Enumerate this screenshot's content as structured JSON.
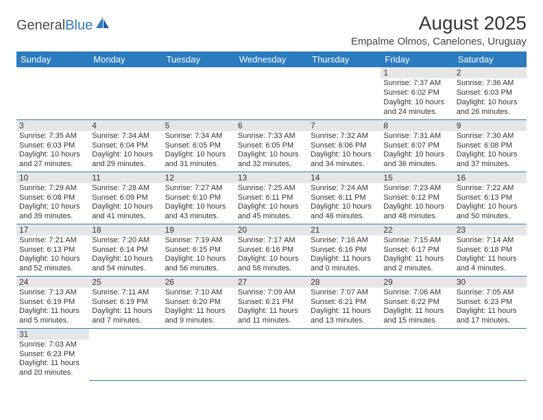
{
  "brand": {
    "part1": "General",
    "part2": "Blue"
  },
  "title": "August 2025",
  "subtitle": "Empalme Olmos, Canelones, Uruguay",
  "weekdays": [
    "Sunday",
    "Monday",
    "Tuesday",
    "Wednesday",
    "Thursday",
    "Friday",
    "Saturday"
  ],
  "colors": {
    "header_bg": "#2b7bbf",
    "header_fg": "#ffffff",
    "daynum_bg": "#e6e6e6",
    "rule": "#2b7bbf",
    "text": "#333333",
    "background": "#ffffff"
  },
  "font": {
    "family": "Arial",
    "title_size": 28,
    "subtitle_size": 15,
    "th_size": 13,
    "daynum_size": 12,
    "body_size": 11
  },
  "first_weekday_index": 5,
  "days": [
    {
      "n": 1,
      "sunrise": "7:37 AM",
      "sunset": "6:02 PM",
      "daylight": "10 hours and 24 minutes."
    },
    {
      "n": 2,
      "sunrise": "7:36 AM",
      "sunset": "6:03 PM",
      "daylight": "10 hours and 26 minutes."
    },
    {
      "n": 3,
      "sunrise": "7:35 AM",
      "sunset": "6:03 PM",
      "daylight": "10 hours and 27 minutes."
    },
    {
      "n": 4,
      "sunrise": "7:34 AM",
      "sunset": "6:04 PM",
      "daylight": "10 hours and 29 minutes."
    },
    {
      "n": 5,
      "sunrise": "7:34 AM",
      "sunset": "6:05 PM",
      "daylight": "10 hours and 31 minutes."
    },
    {
      "n": 6,
      "sunrise": "7:33 AM",
      "sunset": "6:05 PM",
      "daylight": "10 hours and 32 minutes."
    },
    {
      "n": 7,
      "sunrise": "7:32 AM",
      "sunset": "6:06 PM",
      "daylight": "10 hours and 34 minutes."
    },
    {
      "n": 8,
      "sunrise": "7:31 AM",
      "sunset": "6:07 PM",
      "daylight": "10 hours and 36 minutes."
    },
    {
      "n": 9,
      "sunrise": "7:30 AM",
      "sunset": "6:08 PM",
      "daylight": "10 hours and 37 minutes."
    },
    {
      "n": 10,
      "sunrise": "7:29 AM",
      "sunset": "6:08 PM",
      "daylight": "10 hours and 39 minutes."
    },
    {
      "n": 11,
      "sunrise": "7:28 AM",
      "sunset": "6:09 PM",
      "daylight": "10 hours and 41 minutes."
    },
    {
      "n": 12,
      "sunrise": "7:27 AM",
      "sunset": "6:10 PM",
      "daylight": "10 hours and 43 minutes."
    },
    {
      "n": 13,
      "sunrise": "7:25 AM",
      "sunset": "6:11 PM",
      "daylight": "10 hours and 45 minutes."
    },
    {
      "n": 14,
      "sunrise": "7:24 AM",
      "sunset": "6:11 PM",
      "daylight": "10 hours and 46 minutes."
    },
    {
      "n": 15,
      "sunrise": "7:23 AM",
      "sunset": "6:12 PM",
      "daylight": "10 hours and 48 minutes."
    },
    {
      "n": 16,
      "sunrise": "7:22 AM",
      "sunset": "6:13 PM",
      "daylight": "10 hours and 50 minutes."
    },
    {
      "n": 17,
      "sunrise": "7:21 AM",
      "sunset": "6:13 PM",
      "daylight": "10 hours and 52 minutes."
    },
    {
      "n": 18,
      "sunrise": "7:20 AM",
      "sunset": "6:14 PM",
      "daylight": "10 hours and 54 minutes."
    },
    {
      "n": 19,
      "sunrise": "7:19 AM",
      "sunset": "6:15 PM",
      "daylight": "10 hours and 56 minutes."
    },
    {
      "n": 20,
      "sunrise": "7:17 AM",
      "sunset": "6:16 PM",
      "daylight": "10 hours and 58 minutes."
    },
    {
      "n": 21,
      "sunrise": "7:16 AM",
      "sunset": "6:16 PM",
      "daylight": "11 hours and 0 minutes."
    },
    {
      "n": 22,
      "sunrise": "7:15 AM",
      "sunset": "6:17 PM",
      "daylight": "11 hours and 2 minutes."
    },
    {
      "n": 23,
      "sunrise": "7:14 AM",
      "sunset": "6:18 PM",
      "daylight": "11 hours and 4 minutes."
    },
    {
      "n": 24,
      "sunrise": "7:13 AM",
      "sunset": "6:19 PM",
      "daylight": "11 hours and 5 minutes."
    },
    {
      "n": 25,
      "sunrise": "7:11 AM",
      "sunset": "6:19 PM",
      "daylight": "11 hours and 7 minutes."
    },
    {
      "n": 26,
      "sunrise": "7:10 AM",
      "sunset": "6:20 PM",
      "daylight": "11 hours and 9 minutes."
    },
    {
      "n": 27,
      "sunrise": "7:09 AM",
      "sunset": "6:21 PM",
      "daylight": "11 hours and 11 minutes."
    },
    {
      "n": 28,
      "sunrise": "7:07 AM",
      "sunset": "6:21 PM",
      "daylight": "11 hours and 13 minutes."
    },
    {
      "n": 29,
      "sunrise": "7:06 AM",
      "sunset": "6:22 PM",
      "daylight": "11 hours and 15 minutes."
    },
    {
      "n": 30,
      "sunrise": "7:05 AM",
      "sunset": "6:23 PM",
      "daylight": "11 hours and 17 minutes."
    },
    {
      "n": 31,
      "sunrise": "7:03 AM",
      "sunset": "6:23 PM",
      "daylight": "11 hours and 20 minutes."
    }
  ],
  "labels": {
    "sunrise": "Sunrise:",
    "sunset": "Sunset:",
    "daylight": "Daylight:"
  }
}
